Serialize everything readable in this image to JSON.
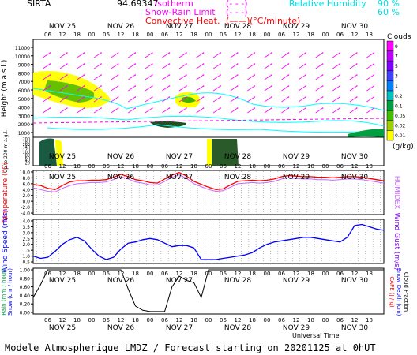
{
  "header": {
    "station": "SIRTA",
    "coords": "94.69347",
    "legend_iso": "Isotherm",
    "legend_iso_sym": "(- - -)",
    "legend_snow": "Snow-Rain Limit",
    "legend_snow_sym": "(- - -)",
    "legend_conv": "Convective Heat.",
    "legend_conv_sym": "(——)",
    "legend_conv_unit": "(°C/minute)",
    "legend_rh": "Relative Humidity",
    "rh_90": "90 %",
    "rh_60": "60 %",
    "rh_sym": "(——)"
  },
  "footer": {
    "title": "Modele Atmospherique LMDZ / Forecast starting on 20201125 at 0hUT",
    "universal_time": "Universal Time"
  },
  "colors": {
    "magenta": "#ff00ff",
    "red": "#ff0000",
    "cyan": "#00ffff",
    "blue": "#0000ff",
    "purple": "#8000ff",
    "frame_bg": "#ffffff"
  },
  "days": [
    "NOV 25",
    "NOV 26",
    "NOV 27",
    "NOV 28",
    "NOV 29",
    "NOV 30"
  ],
  "hour_ticks": [
    "06",
    "12",
    "18",
    "00"
  ],
  "chart_data": [
    {
      "type": "heatmap",
      "name": "cloud_profile",
      "ylabel": "Height (m a.s.l.)",
      "ylabel_low": "Up to 200 m a.g.l.",
      "y_ticks": [
        "1000",
        "2000",
        "3000",
        "4000",
        "5000",
        "6000",
        "7000",
        "8000",
        "9000",
        "10000",
        "11000"
      ],
      "y_ticks_low": [
        "0",
        "20",
        "40",
        "60",
        "80",
        "100",
        "120",
        "140",
        "160",
        "180",
        "200"
      ],
      "y_labeled": [
        "11000",
        "10000",
        "9000",
        "8000",
        "7000",
        "6000",
        "5000",
        "4000",
        "3000",
        "2000",
        "1000"
      ],
      "y_labeled_low": [
        "140",
        "120",
        "100",
        "80",
        "60",
        "40",
        "20",
        "200",
        "180",
        "160"
      ],
      "colorbar_title": "Clouds",
      "colorbar_unit": "(g/kg)",
      "colorbar_ticks": [
        "9",
        "7",
        "5",
        "3",
        "1",
        "0.2",
        "0.1",
        "0.05",
        "0.02",
        "0.01"
      ],
      "colorbar_colors": [
        "#ff00ff",
        "#c000ff",
        "#8000ff",
        "#4040ff",
        "#0080ff",
        "#00c0c0",
        "#00a040",
        "#40c000",
        "#a0d000",
        "#ffff00"
      ]
    },
    {
      "type": "line",
      "name": "temperature",
      "ylabel": "Temperature (°C)",
      "ylabel_right": "HUMIDEX",
      "y_ticks": [
        "-4.0",
        "-2.0",
        "0.0",
        "2.0",
        "4.0",
        "6.0",
        "8.0",
        "10.0"
      ],
      "ylim": [
        -4.0,
        10.0
      ],
      "x_hours": [
        0,
        3,
        6,
        9,
        12,
        15,
        18,
        21,
        24,
        27,
        30,
        33,
        36,
        39,
        42,
        45,
        48,
        51,
        54,
        57,
        60,
        63,
        66,
        69,
        72,
        75,
        78,
        81,
        84,
        87,
        90,
        93,
        96,
        99,
        102,
        105,
        108,
        111,
        114,
        117,
        120,
        123,
        126,
        129,
        132,
        135,
        138,
        141,
        144
      ],
      "series": [
        {
          "name": "",
          "color": "#ff0000",
          "values": [
            5.8,
            5.4,
            4.4,
            4.0,
            5.4,
            6.6,
            7.0,
            7.0,
            7.2,
            7.2,
            7.4,
            8.2,
            9.2,
            8.4,
            7.4,
            7.0,
            6.4,
            6.2,
            7.6,
            9.0,
            9.8,
            8.6,
            6.8,
            5.8,
            4.8,
            4.0,
            4.2,
            5.6,
            6.8,
            7.0,
            7.2,
            7.0,
            7.2,
            7.6,
            8.4,
            8.8,
            8.6,
            8.4,
            8.4,
            8.2,
            8.2,
            8.0,
            8.2,
            8.4,
            8.4,
            8.2,
            7.8,
            7.4,
            7.0
          ]
        },
        {
          "name": "",
          "color": "#cc66ff",
          "values": [
            4.6,
            4.0,
            3.4,
            3.2,
            4.4,
            5.4,
            6.0,
            6.2,
            6.4,
            6.4,
            6.6,
            7.4,
            8.4,
            7.6,
            6.6,
            6.2,
            5.6,
            5.6,
            6.8,
            8.2,
            9.0,
            7.8,
            6.0,
            5.0,
            4.0,
            3.4,
            3.6,
            4.8,
            6.0,
            6.2,
            6.4,
            6.2,
            6.4,
            6.8,
            7.6,
            8.0,
            7.8,
            7.6,
            7.6,
            7.4,
            7.4,
            7.2,
            7.4,
            7.6,
            7.6,
            7.4,
            7.0,
            6.6,
            6.2
          ]
        }
      ]
    },
    {
      "type": "line",
      "name": "wind",
      "ylabel": "Wind Speed (m/s)",
      "ylabel_right": "Wind Gust (m/s)",
      "y_ticks": [
        "0.5",
        "1.0",
        "1.5",
        "2.0",
        "2.5",
        "3.0",
        "3.5",
        "4.0"
      ],
      "ylim": [
        0.5,
        4.0
      ],
      "x_hours": [
        0,
        3,
        6,
        9,
        12,
        15,
        18,
        21,
        24,
        27,
        30,
        33,
        36,
        39,
        42,
        45,
        48,
        51,
        54,
        57,
        60,
        63,
        66,
        69,
        72,
        75,
        78,
        81,
        84,
        87,
        90,
        93,
        96,
        99,
        102,
        105,
        108,
        111,
        114,
        117,
        120,
        123,
        126,
        129,
        132,
        135,
        138,
        141,
        144
      ],
      "series": [
        {
          "name": "",
          "color": "#0000ff",
          "values": [
            1.0,
            0.8,
            0.9,
            1.4,
            2.0,
            2.4,
            2.6,
            2.3,
            1.6,
            1.0,
            0.7,
            0.9,
            1.6,
            2.1,
            2.2,
            2.4,
            2.5,
            2.4,
            2.1,
            1.8,
            1.9,
            1.9,
            1.7,
            0.7,
            0.7,
            0.7,
            0.8,
            0.9,
            1.0,
            1.1,
            1.3,
            1.7,
            2.0,
            2.2,
            2.3,
            2.4,
            2.5,
            2.6,
            2.6,
            2.5,
            2.4,
            2.3,
            2.2,
            2.6,
            3.6,
            3.7,
            3.5,
            3.3,
            3.2
          ]
        }
      ]
    },
    {
      "type": "line",
      "name": "precip_cloud",
      "ylabel_left": [
        "Rain (mm / hour)",
        "Snow (cm / hour)"
      ],
      "ylabel_right": [
        "CAPE (J / g)",
        "Snow Depth (cm)",
        "Cloud Fraction"
      ],
      "y_ticks": [
        "0.00",
        "0.20",
        "0.40",
        "0.60",
        "0.80",
        "1.00"
      ],
      "ylim": [
        0.0,
        1.0
      ],
      "x_hours": [
        0,
        3,
        6,
        9,
        12,
        15,
        18,
        21,
        24,
        27,
        30,
        33,
        36,
        39,
        42,
        45,
        48,
        51,
        54,
        57,
        60,
        63,
        66,
        69,
        72,
        75,
        78,
        81,
        84,
        87,
        90,
        93,
        96,
        99,
        102,
        105,
        108,
        111,
        114,
        117,
        120,
        123,
        126,
        129,
        132,
        135,
        138,
        141,
        144
      ],
      "series": [
        {
          "name": "",
          "color": "#000000",
          "values": [
            0.35,
            0.65,
            1.0,
            1.0,
            1.0,
            1.0,
            1.0,
            1.0,
            1.0,
            1.0,
            1.0,
            1.0,
            1.0,
            0.55,
            0.15,
            0.05,
            0.02,
            0.02,
            0.02,
            0.6,
            0.85,
            0.75,
            0.7,
            0.35,
            1.0,
            1.0,
            1.0,
            1.0,
            1.0,
            1.0,
            1.0,
            1.0,
            1.0,
            1.0,
            1.0,
            1.0,
            1.0,
            1.0,
            1.0,
            1.0,
            1.0,
            1.0,
            1.0,
            1.0,
            1.0,
            1.0,
            1.0,
            1.0,
            1.0
          ]
        }
      ]
    }
  ]
}
